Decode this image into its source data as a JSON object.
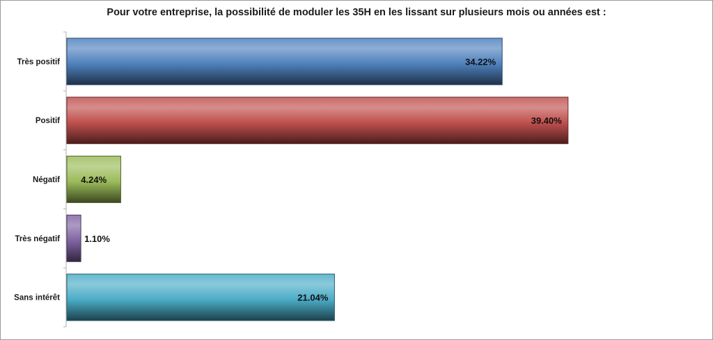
{
  "chart_data": {
    "type": "bar",
    "orientation": "horizontal",
    "title": "Pour votre entreprise, la possibilité  de moduler  les 35H en les lissant sur plusieurs  mois ou années est :",
    "categories": [
      "Très positif",
      "Positif",
      "Négatif",
      "Très négatif",
      "Sans intérêt"
    ],
    "values": [
      34.22,
      39.4,
      4.24,
      1.1,
      21.04
    ],
    "value_labels": [
      "34.22%",
      "39.40%",
      "4.24%",
      "1.10%",
      "21.04%"
    ],
    "colors": [
      "#4f81bd",
      "#c0504d",
      "#9bbb59",
      "#8064a2",
      "#4bacc6"
    ],
    "xlim": [
      0,
      50
    ],
    "xlabel": "",
    "ylabel": "",
    "grid": false,
    "legend": "none"
  }
}
